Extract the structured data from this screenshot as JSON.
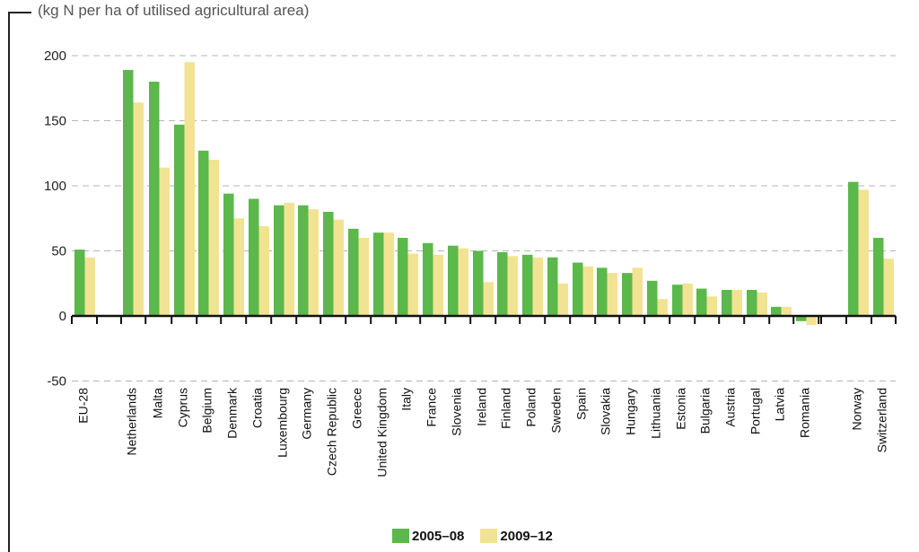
{
  "chart_data": {
    "type": "bar",
    "unit_label": "(kg N per ha of utilised agricultural area)",
    "categories": [
      "EU-28",
      "Netherlands",
      "Malta",
      "Cyprus",
      "Belgium",
      "Denmark",
      "Croatia",
      "Luxembourg",
      "Germany",
      "Czech Republic",
      "Greece",
      "United Kingdom",
      "Italy",
      "France",
      "Slovenia",
      "Ireland",
      "Finland",
      "Poland",
      "Sweden",
      "Spain",
      "Slovakia",
      "Hungary",
      "Lithuania",
      "Estonia",
      "Bulgaria",
      "Austria",
      "Portugal",
      "Latvia",
      "Romania",
      "Norway",
      "Switzerland"
    ],
    "series": [
      {
        "name": "2005–08",
        "color": "#5bb84a",
        "values": [
          51,
          189,
          180,
          147,
          127,
          94,
          90,
          85,
          85,
          80,
          67,
          64,
          60,
          56,
          54,
          50,
          49,
          47,
          45,
          41,
          37,
          33,
          27,
          24,
          21,
          20,
          20,
          7,
          -4,
          103,
          60
        ]
      },
      {
        "name": "2009–12",
        "color": "#f2e394",
        "values": [
          45,
          164,
          114,
          195,
          120,
          75,
          69,
          87,
          82,
          74,
          60,
          64,
          48,
          47,
          52,
          26,
          46,
          45,
          25,
          38,
          33,
          37,
          13,
          25,
          15,
          20,
          18,
          7,
          -7,
          97,
          44
        ]
      }
    ],
    "ylim": [
      -50,
      200
    ],
    "yticks": [
      -50,
      0,
      50,
      100,
      150,
      200
    ],
    "grid": true,
    "legend_position": "bottom-center"
  }
}
